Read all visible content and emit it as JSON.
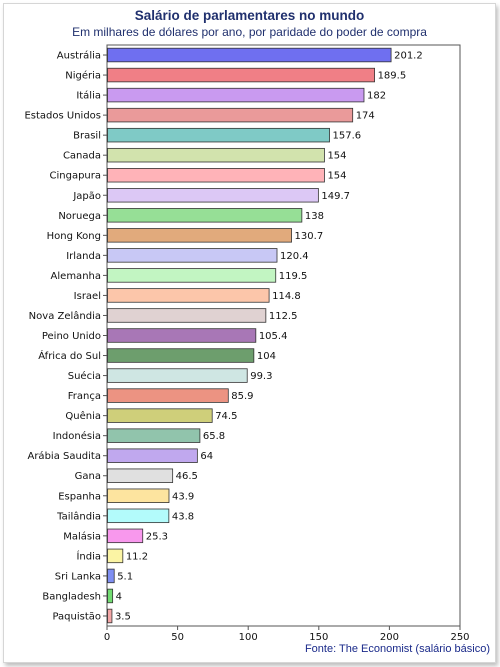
{
  "chart_data": {
    "type": "bar",
    "orientation": "horizontal",
    "title": "Salário de parlamentares no mundo",
    "subtitle": "Em milhares de dólares por ano, por paridade do poder de compra",
    "source": "Fonte: The Economist (salário básico)",
    "categories": [
      "Austrália",
      "Nigéria",
      "Itália",
      "Estados Unidos",
      "Brasil",
      "Canada",
      "Cingapura",
      "Japão",
      "Noruega",
      "Hong Kong",
      "Irlanda",
      "Alemanha",
      "Israel",
      "Nova Zelândia",
      "Peino Unido",
      "África do Sul",
      "Suécia",
      "França",
      "Quênia",
      "Indonésia",
      "Arábia Saudita",
      "Gana",
      "Espanha",
      "Tailândia",
      "Malásia",
      "Índia",
      "Sri Lanka",
      "Bangladesh",
      "Paquistão"
    ],
    "values": [
      201.2,
      189.5,
      182,
      174,
      157.6,
      154,
      154,
      149.7,
      138,
      130.7,
      120.4,
      119.5,
      114.8,
      112.5,
      105.4,
      104,
      99.3,
      85.9,
      74.5,
      65.8,
      64,
      46.5,
      43.9,
      43.8,
      25.3,
      11.2,
      5.1,
      4,
      3.5
    ],
    "value_labels": [
      "201.2",
      "189.5",
      "182",
      "174",
      "157.6",
      "154",
      "154",
      "149.7",
      "138",
      "130.7",
      "120.4",
      "119.5",
      "114.8",
      "112.5",
      "105.4",
      "104",
      "99.3",
      "85.9",
      "74.5",
      "65.8",
      "64",
      "46.5",
      "43.9",
      "43.8",
      "25.3",
      "11.2",
      "5.1",
      "4",
      "3.5"
    ],
    "colors": [
      "#6f6ff0",
      "#f07f86",
      "#c99af0",
      "#ea9a9a",
      "#7fcac6",
      "#d2e3ad",
      "#ffb3b8",
      "#dcc8f5",
      "#96df96",
      "#e1aa7c",
      "#c8c8f5",
      "#c2f5c2",
      "#fcc6aa",
      "#e0d2d2",
      "#a877b6",
      "#6d9e6d",
      "#cfe6e3",
      "#ec9382",
      "#cfcf7a",
      "#91c4ac",
      "#c0a8ee",
      "#e0e0e0",
      "#fde49f",
      "#b3fbfb",
      "#f898ed",
      "#fbf4a4",
      "#7f8ff2",
      "#72dd72",
      "#f4a6a6"
    ],
    "xlim": [
      0,
      250
    ],
    "xticks": [
      "0",
      "50",
      "100",
      "150",
      "200",
      "250"
    ],
    "grid": false,
    "legend": "none"
  }
}
